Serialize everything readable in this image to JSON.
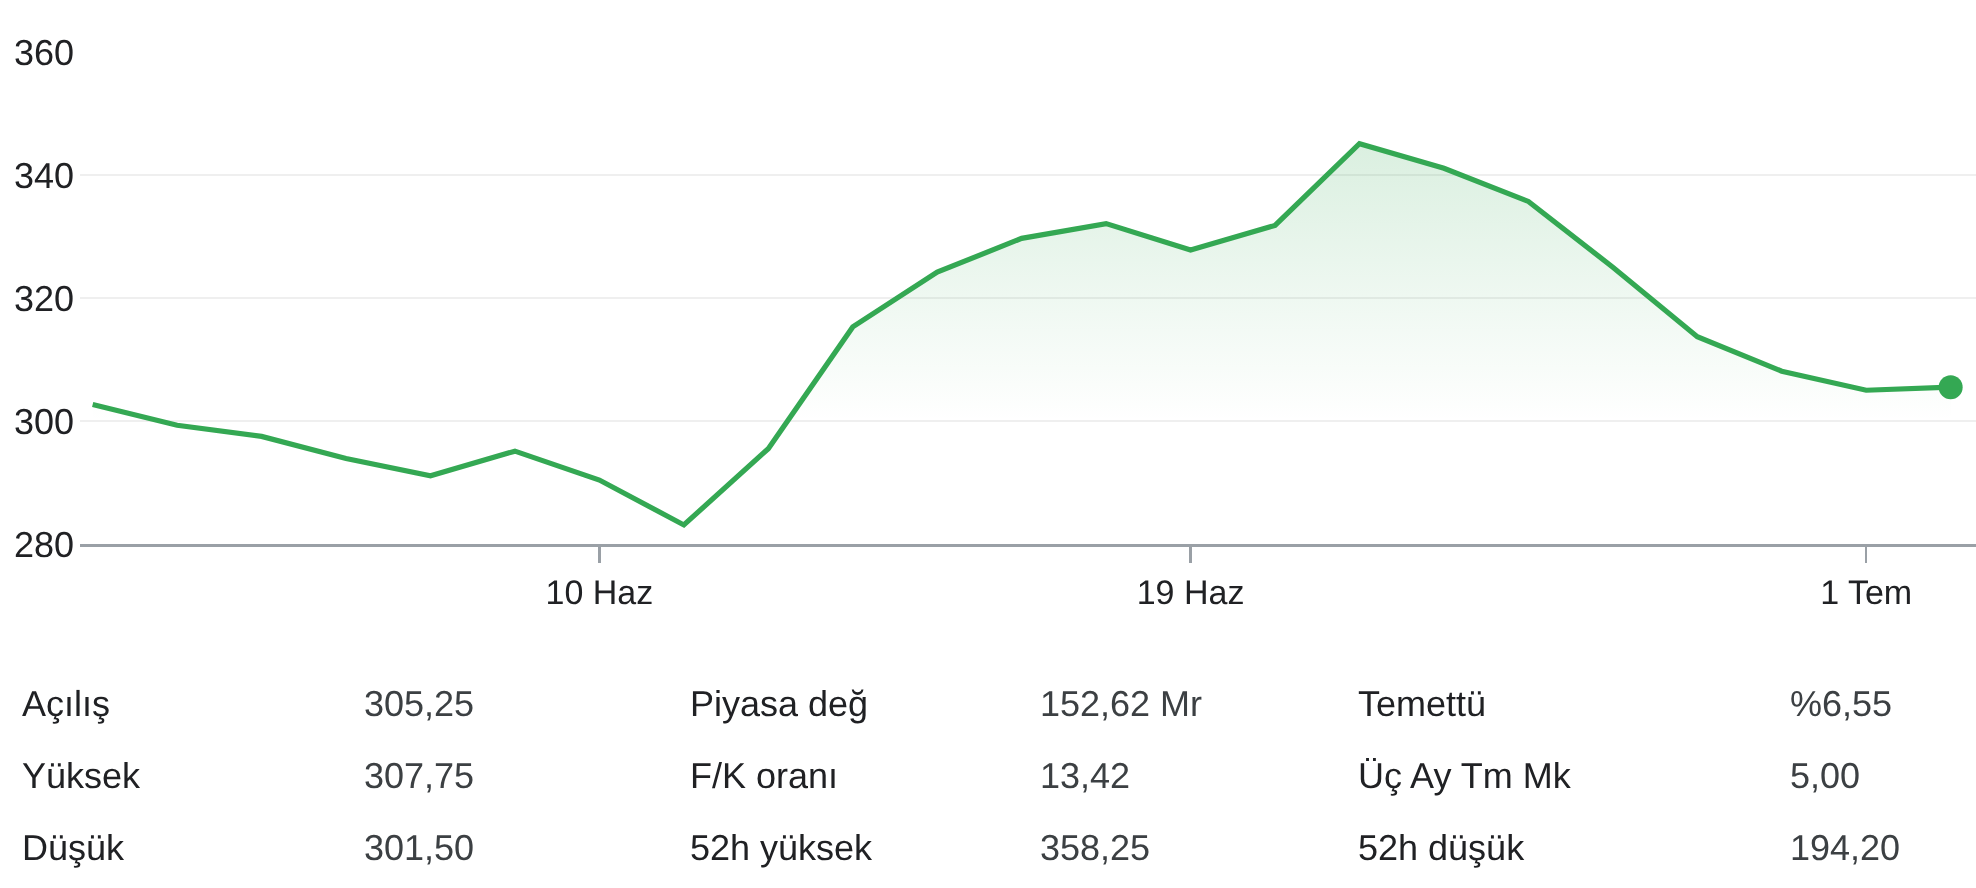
{
  "chart_data": [
    {
      "type": "area",
      "categories": [
        null,
        null,
        null,
        null,
        null,
        null,
        "10 Haz",
        null,
        null,
        null,
        null,
        null,
        null,
        "19 Haz",
        null,
        null,
        null,
        null,
        null,
        null,
        null,
        "1 Tem",
        null
      ],
      "ylim": [
        280,
        360
      ],
      "yticks": [
        280,
        300,
        320,
        340,
        360
      ],
      "grid": "y",
      "series": [
        {
          "color": "#34a853",
          "values": [
            302.7,
            299.3,
            297.5,
            293.9,
            291.1,
            295.1,
            290.4,
            283.1,
            295.5,
            315.3,
            324.2,
            329.7,
            332.1,
            327.8,
            331.8,
            345.1,
            341.1,
            335.7,
            325,
            313.7,
            308.1,
            305,
            305.5
          ]
        },
        {
          "type": "scatter",
          "marker": "circle",
          "color": "#34a853",
          "values": [
            null,
            null,
            null,
            null,
            null,
            null,
            null,
            null,
            null,
            null,
            null,
            null,
            null,
            null,
            null,
            null,
            null,
            null,
            null,
            null,
            null,
            null,
            305.5
          ]
        }
      ]
    },
    {
      "type": "other",
      "annotations": [
        "Açılış",
        "305,25",
        "Piyasa değ",
        "152,62 Mr",
        "Temettü",
        "%6,55",
        "Yüksek",
        "307,75",
        "F/K oranı",
        "13,42",
        "Üç Ay Tm Mk",
        "5,00",
        "Düşük",
        "301,50",
        "52h yüksek",
        "358,25",
        "52h düşük",
        "194,20"
      ]
    }
  ]
}
